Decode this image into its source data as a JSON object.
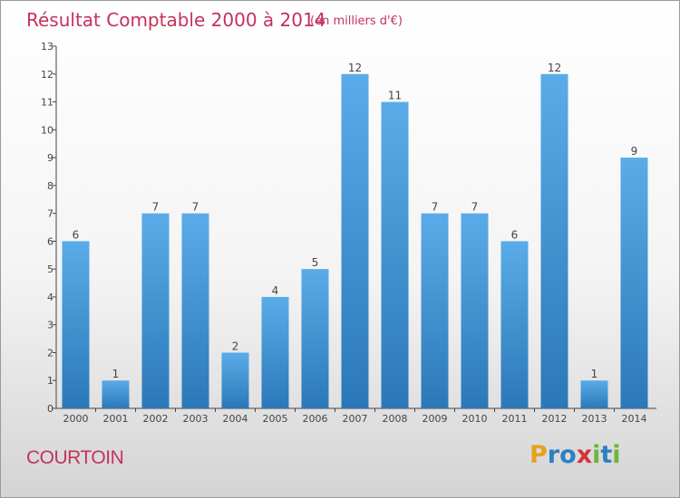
{
  "chart_data": {
    "type": "bar",
    "title": "Résultat Comptable 2000 à 2014",
    "subtitle": "(en milliers d'€)",
    "categories": [
      "2000",
      "2001",
      "2002",
      "2003",
      "2004",
      "2005",
      "2006",
      "2007",
      "2008",
      "2009",
      "2010",
      "2011",
      "2012",
      "2013",
      "2014"
    ],
    "values": [
      6,
      1,
      7,
      7,
      2,
      4,
      5,
      12,
      11,
      7,
      7,
      6,
      12,
      1,
      9
    ],
    "data_labels": [
      "6",
      "1",
      "7",
      "7",
      "2",
      "4",
      "5",
      "12",
      "11",
      "7",
      "7",
      "6",
      "12",
      "1",
      "9"
    ],
    "ylim": [
      0,
      13
    ],
    "yticks": [
      "0",
      "1",
      "2",
      "3",
      "4",
      "5",
      "6",
      "7",
      "8",
      "9",
      "10",
      "11",
      "12",
      "13"
    ],
    "grid": false,
    "bar_color_top": "#5aace8",
    "bar_color_bottom": "#2b78b8"
  },
  "commune_name": "COURTOIN",
  "logo": {
    "letters": [
      "P",
      "r",
      "o",
      "x",
      "i",
      "t",
      "i"
    ],
    "colors": [
      "#e8a11e",
      "#2e7fc2",
      "#2e7fc2",
      "#d6303a",
      "#72b33a",
      "#2e7fc2",
      "#72b33a"
    ]
  },
  "colors": {
    "title": "#c4325c",
    "axis": "#444444",
    "label": "#444444"
  }
}
